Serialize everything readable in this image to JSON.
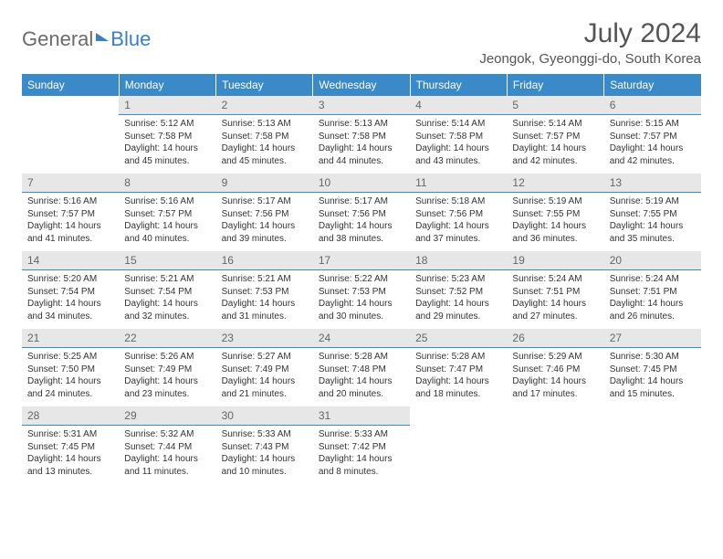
{
  "logo": {
    "part1": "General",
    "part2": "Blue"
  },
  "title": "July 2024",
  "location": "Jeongok, Gyeonggi-do, South Korea",
  "styling": {
    "header_bg": "#3a8ac9",
    "header_text": "#ffffff",
    "daynum_bg": "#e7e7e7",
    "daynum_border": "#3a8ac9",
    "body_text": "#333333",
    "title_fontsize": 30,
    "location_fontsize": 15,
    "th_fontsize": 12,
    "cell_fontsize": 10
  },
  "daysOfWeek": [
    "Sunday",
    "Monday",
    "Tuesday",
    "Wednesday",
    "Thursday",
    "Friday",
    "Saturday"
  ],
  "weeks": [
    [
      null,
      {
        "n": "1",
        "sunrise": "5:12 AM",
        "sunset": "7:58 PM",
        "daylight": "14 hours and 45 minutes."
      },
      {
        "n": "2",
        "sunrise": "5:13 AM",
        "sunset": "7:58 PM",
        "daylight": "14 hours and 45 minutes."
      },
      {
        "n": "3",
        "sunrise": "5:13 AM",
        "sunset": "7:58 PM",
        "daylight": "14 hours and 44 minutes."
      },
      {
        "n": "4",
        "sunrise": "5:14 AM",
        "sunset": "7:58 PM",
        "daylight": "14 hours and 43 minutes."
      },
      {
        "n": "5",
        "sunrise": "5:14 AM",
        "sunset": "7:57 PM",
        "daylight": "14 hours and 42 minutes."
      },
      {
        "n": "6",
        "sunrise": "5:15 AM",
        "sunset": "7:57 PM",
        "daylight": "14 hours and 42 minutes."
      }
    ],
    [
      {
        "n": "7",
        "sunrise": "5:16 AM",
        "sunset": "7:57 PM",
        "daylight": "14 hours and 41 minutes."
      },
      {
        "n": "8",
        "sunrise": "5:16 AM",
        "sunset": "7:57 PM",
        "daylight": "14 hours and 40 minutes."
      },
      {
        "n": "9",
        "sunrise": "5:17 AM",
        "sunset": "7:56 PM",
        "daylight": "14 hours and 39 minutes."
      },
      {
        "n": "10",
        "sunrise": "5:17 AM",
        "sunset": "7:56 PM",
        "daylight": "14 hours and 38 minutes."
      },
      {
        "n": "11",
        "sunrise": "5:18 AM",
        "sunset": "7:56 PM",
        "daylight": "14 hours and 37 minutes."
      },
      {
        "n": "12",
        "sunrise": "5:19 AM",
        "sunset": "7:55 PM",
        "daylight": "14 hours and 36 minutes."
      },
      {
        "n": "13",
        "sunrise": "5:19 AM",
        "sunset": "7:55 PM",
        "daylight": "14 hours and 35 minutes."
      }
    ],
    [
      {
        "n": "14",
        "sunrise": "5:20 AM",
        "sunset": "7:54 PM",
        "daylight": "14 hours and 34 minutes."
      },
      {
        "n": "15",
        "sunrise": "5:21 AM",
        "sunset": "7:54 PM",
        "daylight": "14 hours and 32 minutes."
      },
      {
        "n": "16",
        "sunrise": "5:21 AM",
        "sunset": "7:53 PM",
        "daylight": "14 hours and 31 minutes."
      },
      {
        "n": "17",
        "sunrise": "5:22 AM",
        "sunset": "7:53 PM",
        "daylight": "14 hours and 30 minutes."
      },
      {
        "n": "18",
        "sunrise": "5:23 AM",
        "sunset": "7:52 PM",
        "daylight": "14 hours and 29 minutes."
      },
      {
        "n": "19",
        "sunrise": "5:24 AM",
        "sunset": "7:51 PM",
        "daylight": "14 hours and 27 minutes."
      },
      {
        "n": "20",
        "sunrise": "5:24 AM",
        "sunset": "7:51 PM",
        "daylight": "14 hours and 26 minutes."
      }
    ],
    [
      {
        "n": "21",
        "sunrise": "5:25 AM",
        "sunset": "7:50 PM",
        "daylight": "14 hours and 24 minutes."
      },
      {
        "n": "22",
        "sunrise": "5:26 AM",
        "sunset": "7:49 PM",
        "daylight": "14 hours and 23 minutes."
      },
      {
        "n": "23",
        "sunrise": "5:27 AM",
        "sunset": "7:49 PM",
        "daylight": "14 hours and 21 minutes."
      },
      {
        "n": "24",
        "sunrise": "5:28 AM",
        "sunset": "7:48 PM",
        "daylight": "14 hours and 20 minutes."
      },
      {
        "n": "25",
        "sunrise": "5:28 AM",
        "sunset": "7:47 PM",
        "daylight": "14 hours and 18 minutes."
      },
      {
        "n": "26",
        "sunrise": "5:29 AM",
        "sunset": "7:46 PM",
        "daylight": "14 hours and 17 minutes."
      },
      {
        "n": "27",
        "sunrise": "5:30 AM",
        "sunset": "7:45 PM",
        "daylight": "14 hours and 15 minutes."
      }
    ],
    [
      {
        "n": "28",
        "sunrise": "5:31 AM",
        "sunset": "7:45 PM",
        "daylight": "14 hours and 13 minutes."
      },
      {
        "n": "29",
        "sunrise": "5:32 AM",
        "sunset": "7:44 PM",
        "daylight": "14 hours and 11 minutes."
      },
      {
        "n": "30",
        "sunrise": "5:33 AM",
        "sunset": "7:43 PM",
        "daylight": "14 hours and 10 minutes."
      },
      {
        "n": "31",
        "sunrise": "5:33 AM",
        "sunset": "7:42 PM",
        "daylight": "14 hours and 8 minutes."
      },
      null,
      null,
      null
    ]
  ]
}
